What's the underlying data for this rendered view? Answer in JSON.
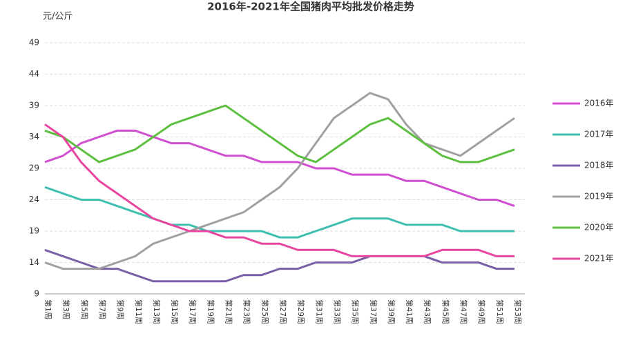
{
  "chart_data": {
    "type": "line",
    "title": "2016年-2021年全国猪肉平均批发价格走势",
    "y_label": "元/公斤",
    "categories": [
      "第1周",
      "第3周",
      "第5周",
      "第7周",
      "第9周",
      "第11周",
      "第13周",
      "第15周",
      "第17周",
      "第19周",
      "第21周",
      "第23周",
      "第25周",
      "第27周",
      "第29周",
      "第31周",
      "第33周",
      "第35周",
      "第37周",
      "第39周",
      "第41周",
      "第43周",
      "第45周",
      "第47周",
      "第49周",
      "第51周",
      "第53周"
    ],
    "series": [
      {
        "name": "2016年",
        "color": "#d04fd0",
        "values": [
          30,
          31,
          33,
          34,
          35,
          35,
          34,
          33,
          33,
          32,
          31,
          31,
          30,
          30,
          30,
          29,
          29,
          28,
          28,
          28,
          27,
          27,
          26,
          25,
          24,
          24,
          23
        ]
      },
      {
        "name": "2017年",
        "color": "#3fbfb0",
        "values": [
          26,
          25,
          24,
          24,
          23,
          22,
          21,
          20,
          20,
          19,
          19,
          19,
          19,
          18,
          18,
          19,
          20,
          21,
          21,
          21,
          20,
          20,
          20,
          19,
          19,
          19,
          19
        ]
      },
      {
        "name": "2018年",
        "color": "#7a5fa8",
        "values": [
          16,
          15,
          14,
          13,
          13,
          12,
          11,
          11,
          11,
          11,
          11,
          12,
          12,
          13,
          13,
          14,
          14,
          14,
          15,
          15,
          15,
          15,
          14,
          14,
          14,
          13,
          13
        ]
      },
      {
        "name": "2019年",
        "color": "#a0a0a0",
        "values": [
          14,
          13,
          13,
          13,
          14,
          15,
          17,
          18,
          19,
          20,
          21,
          22,
          24,
          26,
          29,
          33,
          37,
          39,
          41,
          40,
          36,
          33,
          32,
          31,
          33,
          35,
          37
        ]
      },
      {
        "name": "2020年",
        "color": "#5cbf3f",
        "values": [
          35,
          34,
          32,
          30,
          31,
          32,
          34,
          36,
          37,
          38,
          39,
          37,
          35,
          33,
          31,
          30,
          32,
          34,
          36,
          37,
          35,
          33,
          31,
          30,
          30,
          31,
          32
        ]
      },
      {
        "name": "2021年",
        "color": "#e8459f",
        "values": [
          36,
          34,
          30,
          27,
          25,
          23,
          21,
          20,
          19,
          19,
          18,
          18,
          17,
          17,
          16,
          16,
          16,
          15,
          15,
          15,
          15,
          15,
          16,
          16,
          16,
          15,
          15
        ]
      }
    ],
    "ylim": [
      9,
      49
    ],
    "yticks": [
      9,
      14,
      19,
      24,
      29,
      34,
      39,
      44,
      49
    ],
    "grid": true
  }
}
